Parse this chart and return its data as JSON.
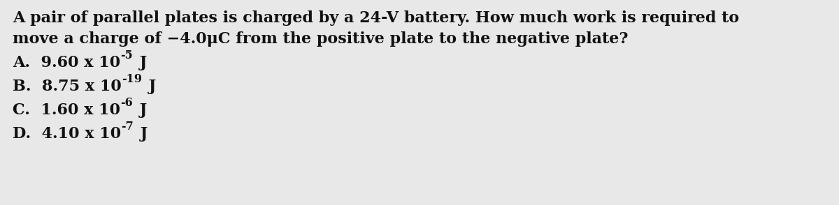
{
  "background_color": "#e8e8e8",
  "text_color": "#111111",
  "figsize": [
    12.0,
    2.94
  ],
  "dpi": 100,
  "question_line1": "A pair of parallel plates is charged by a 24-V battery. How much work is required to",
  "question_line2": "move a charge of −4.0μC from the positive plate to the negative plate?",
  "options": [
    {
      "label": "A.  ",
      "main": "9.60 x 10",
      "exp": "-5",
      "unit": " J"
    },
    {
      "label": "B.  ",
      "main": "8.75 x 10",
      "exp": "-19",
      "unit": " J"
    },
    {
      "label": "C.  ",
      "main": "1.60 x 10",
      "exp": "-6",
      "unit": " J"
    },
    {
      "label": "D.  ",
      "main": "4.10 x 10",
      "exp": "-7",
      "unit": " J"
    }
  ],
  "font_size_q": 16,
  "font_size_opt": 16,
  "font_family": "serif"
}
